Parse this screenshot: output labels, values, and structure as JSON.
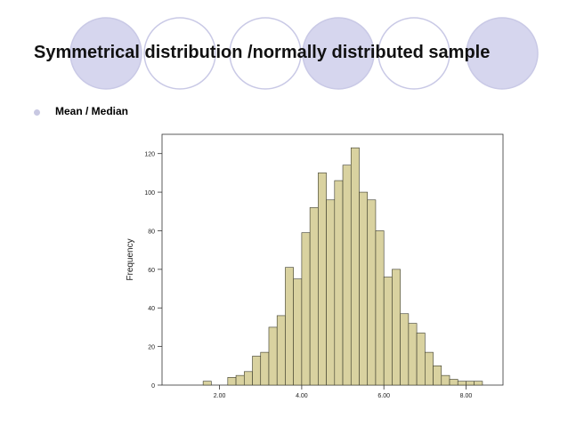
{
  "slide": {
    "title": "Symmetrical distribution /normally distributed sample",
    "bullet": "Mean / Median"
  },
  "colors": {
    "circle_fill": "#d6d6ee",
    "circle_stroke": "#c9c9e6",
    "bullet": "#c8c8e2",
    "bar_fill": "#d9d2a0",
    "bar_stroke": "#3a3a2a",
    "plot_bg": "#ffffff",
    "axis": "#333333"
  },
  "chart_data": {
    "type": "bar",
    "title": "",
    "xlabel": "",
    "ylabel": "Frequency",
    "bin_width": 0.2,
    "xlim": [
      0.6,
      8.9
    ],
    "ylim": [
      0,
      130
    ],
    "xticks": [
      2,
      4,
      6,
      8
    ],
    "xtick_labels": [
      "2.00",
      "4.00",
      "6.00",
      "8.00"
    ],
    "yticks": [
      0,
      20,
      40,
      60,
      80,
      100,
      120
    ],
    "ytick_labels": [
      "0",
      "20",
      "40",
      "60",
      "80",
      "100",
      "120"
    ],
    "grid": false,
    "bin_starts": [
      1.6,
      2.2,
      2.4,
      2.6,
      2.8,
      3.0,
      3.2,
      3.4,
      3.6,
      3.8,
      4.0,
      4.2,
      4.4,
      4.6,
      4.8,
      5.0,
      5.2,
      5.4,
      5.6,
      5.8,
      6.0,
      6.2,
      6.4,
      6.6,
      6.8,
      7.0,
      7.2,
      7.4,
      7.6,
      7.8,
      8.0,
      8.2
    ],
    "values": [
      2,
      4,
      5,
      7,
      15,
      17,
      30,
      36,
      61,
      55,
      79,
      92,
      110,
      96,
      106,
      114,
      123,
      100,
      96,
      80,
      56,
      60,
      37,
      32,
      27,
      17,
      10,
      5,
      3,
      2,
      2,
      2
    ]
  }
}
